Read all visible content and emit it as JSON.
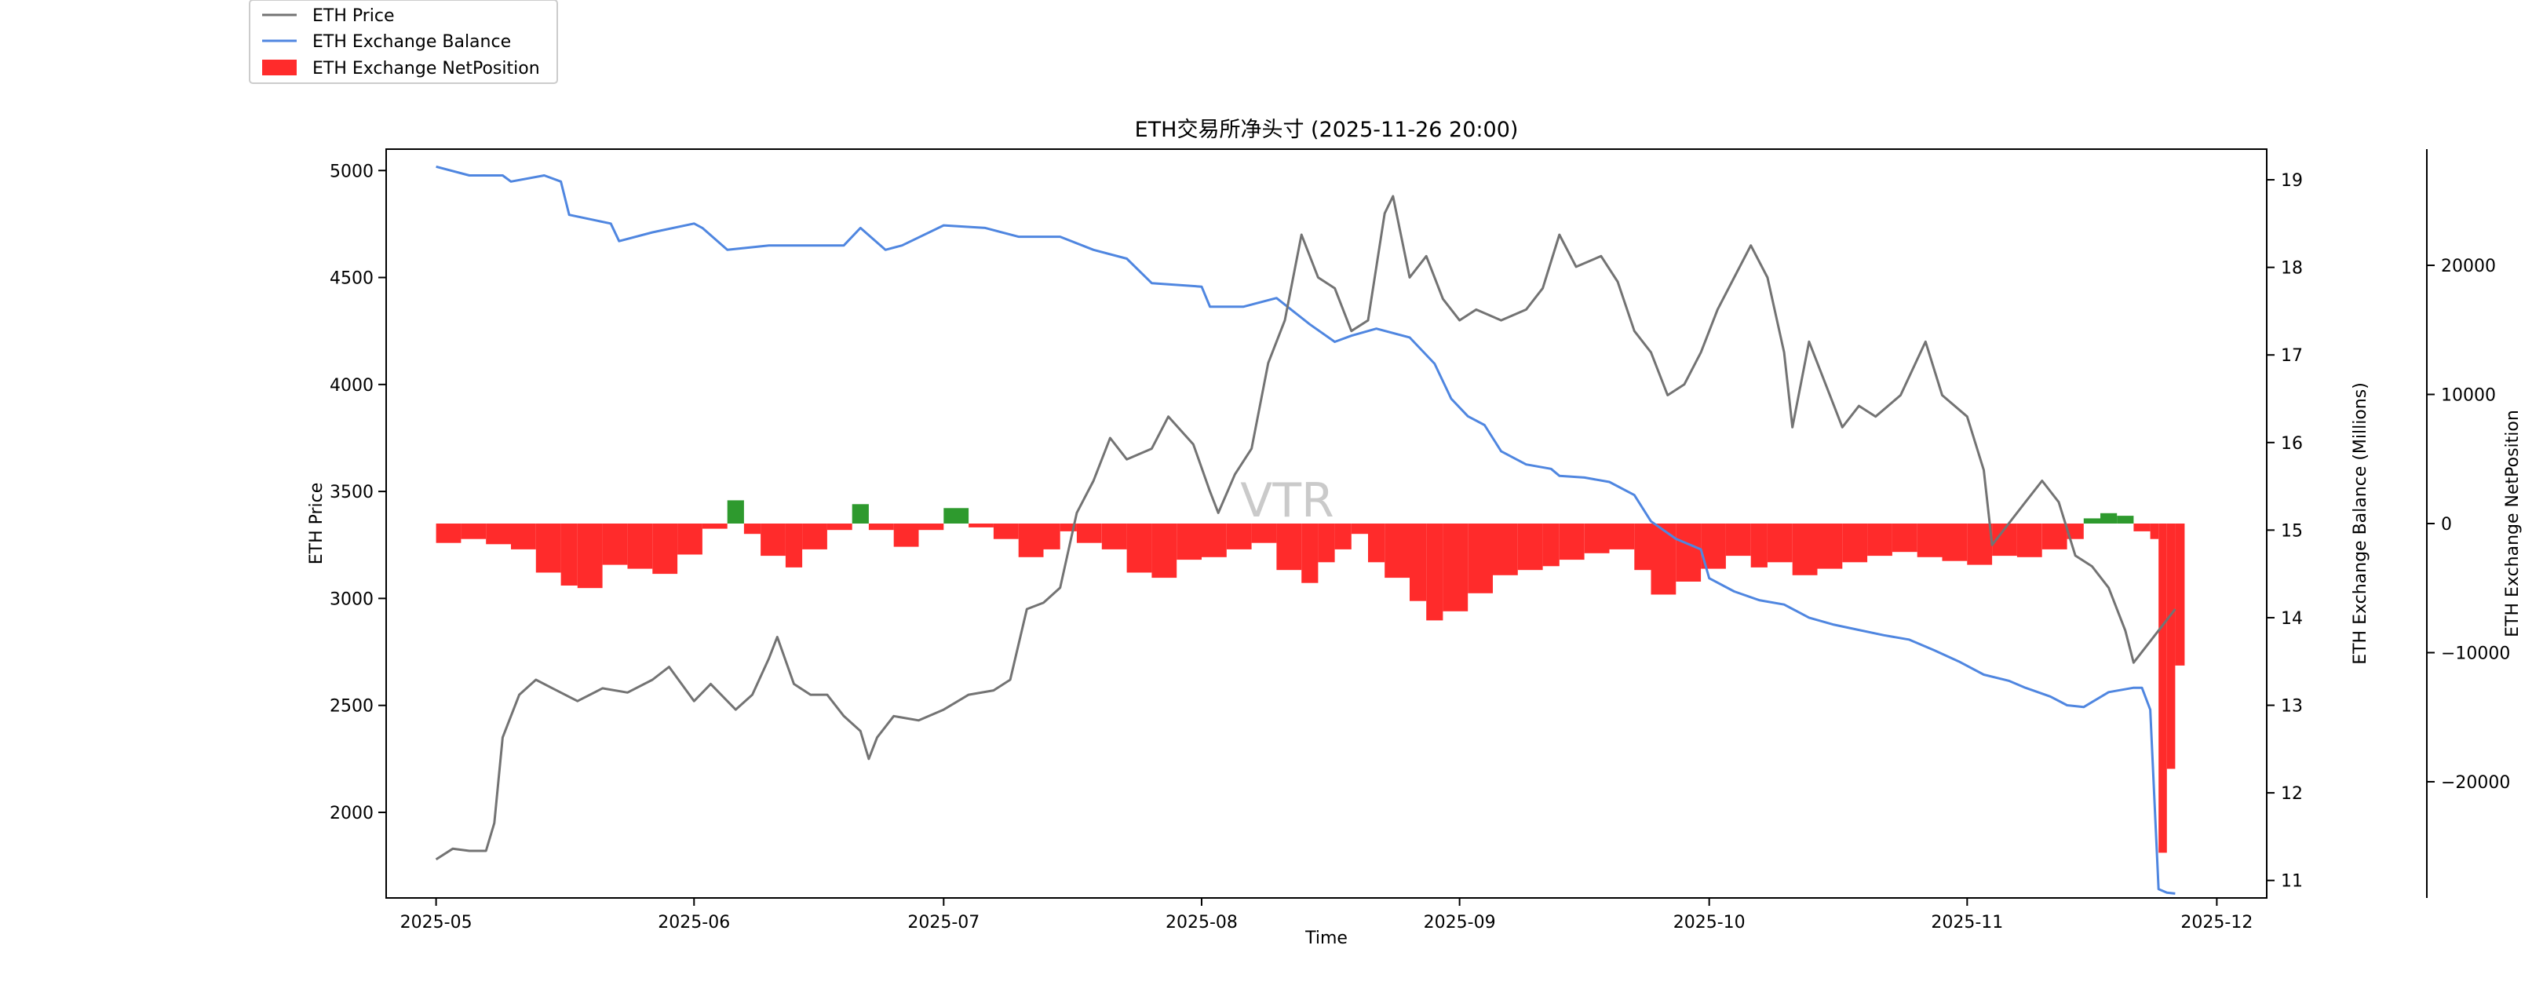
{
  "chart_data": {
    "type": "line",
    "title": "ETH交易所净头寸 (2025-11-26 20:00)",
    "xlabel": "Time",
    "ylabel_left": "ETH Price",
    "ylabel_right": "ETH Exchange Balance (Millions)",
    "ylabel_right2": "ETH Exchange NetPosition",
    "watermark": "VTR",
    "legend_position": "upper-left (outside, above plot)",
    "grid": false,
    "x_ticks": [
      "2025-05",
      "2025-06",
      "2025-07",
      "2025-08",
      "2025-09",
      "2025-10",
      "2025-11",
      "2025-12"
    ],
    "x_range": [
      "2025-04-25",
      "2025-12-07"
    ],
    "y_left_ticks": [
      "2000",
      "2500",
      "3000",
      "3500",
      "4000",
      "4500",
      "5000"
    ],
    "y_left_range": [
      1600,
      5100
    ],
    "y_right_ticks": [
      "11",
      "12",
      "13",
      "14",
      "15",
      "16",
      "17",
      "18",
      "19"
    ],
    "y_right_range": [
      10.8,
      19.35
    ],
    "y_right2_ticks": [
      "−20000",
      "−10000",
      "0",
      "10000",
      "20000"
    ],
    "y_right2_range": [
      -29000,
      29000
    ],
    "series": [
      {
        "name": "ETH Price",
        "color": "#737373",
        "axis": "left",
        "style": "line",
        "points": [
          [
            "2025-05-01",
            1780
          ],
          [
            "2025-05-03",
            1830
          ],
          [
            "2025-05-05",
            1820
          ],
          [
            "2025-05-07",
            1820
          ],
          [
            "2025-05-08",
            1950
          ],
          [
            "2025-05-09",
            2350
          ],
          [
            "2025-05-10",
            2450
          ],
          [
            "2025-05-11",
            2550
          ],
          [
            "2025-05-13",
            2620
          ],
          [
            "2025-05-15",
            2580
          ],
          [
            "2025-05-18",
            2520
          ],
          [
            "2025-05-21",
            2580
          ],
          [
            "2025-05-24",
            2560
          ],
          [
            "2025-05-27",
            2620
          ],
          [
            "2025-05-29",
            2680
          ],
          [
            "2025-06-01",
            2520
          ],
          [
            "2025-06-03",
            2600
          ],
          [
            "2025-06-06",
            2480
          ],
          [
            "2025-06-08",
            2550
          ],
          [
            "2025-06-10",
            2720
          ],
          [
            "2025-06-11",
            2820
          ],
          [
            "2025-06-13",
            2600
          ],
          [
            "2025-06-15",
            2550
          ],
          [
            "2025-06-17",
            2550
          ],
          [
            "2025-06-19",
            2450
          ],
          [
            "2025-06-21",
            2380
          ],
          [
            "2025-06-22",
            2250
          ],
          [
            "2025-06-23",
            2350
          ],
          [
            "2025-06-25",
            2450
          ],
          [
            "2025-06-28",
            2430
          ],
          [
            "2025-07-01",
            2480
          ],
          [
            "2025-07-04",
            2550
          ],
          [
            "2025-07-07",
            2570
          ],
          [
            "2025-07-09",
            2620
          ],
          [
            "2025-07-11",
            2950
          ],
          [
            "2025-07-13",
            2980
          ],
          [
            "2025-07-15",
            3050
          ],
          [
            "2025-07-17",
            3400
          ],
          [
            "2025-07-19",
            3550
          ],
          [
            "2025-07-21",
            3750
          ],
          [
            "2025-07-23",
            3650
          ],
          [
            "2025-07-26",
            3700
          ],
          [
            "2025-07-28",
            3850
          ],
          [
            "2025-07-31",
            3720
          ],
          [
            "2025-08-02",
            3500
          ],
          [
            "2025-08-03",
            3400
          ],
          [
            "2025-08-05",
            3580
          ],
          [
            "2025-08-07",
            3700
          ],
          [
            "2025-08-09",
            4100
          ],
          [
            "2025-08-11",
            4300
          ],
          [
            "2025-08-13",
            4700
          ],
          [
            "2025-08-15",
            4500
          ],
          [
            "2025-08-17",
            4450
          ],
          [
            "2025-08-19",
            4250
          ],
          [
            "2025-08-21",
            4300
          ],
          [
            "2025-08-23",
            4800
          ],
          [
            "2025-08-24",
            4880
          ],
          [
            "2025-08-26",
            4500
          ],
          [
            "2025-08-28",
            4600
          ],
          [
            "2025-08-30",
            4400
          ],
          [
            "2025-09-01",
            4300
          ],
          [
            "2025-09-03",
            4350
          ],
          [
            "2025-09-06",
            4300
          ],
          [
            "2025-09-09",
            4350
          ],
          [
            "2025-09-11",
            4450
          ],
          [
            "2025-09-13",
            4700
          ],
          [
            "2025-09-15",
            4550
          ],
          [
            "2025-09-18",
            4600
          ],
          [
            "2025-09-20",
            4480
          ],
          [
            "2025-09-22",
            4250
          ],
          [
            "2025-09-24",
            4150
          ],
          [
            "2025-09-26",
            3950
          ],
          [
            "2025-09-28",
            4000
          ],
          [
            "2025-09-30",
            4150
          ],
          [
            "2025-10-02",
            4350
          ],
          [
            "2025-10-04",
            4500
          ],
          [
            "2025-10-06",
            4650
          ],
          [
            "2025-10-08",
            4500
          ],
          [
            "2025-10-10",
            4150
          ],
          [
            "2025-10-11",
            3800
          ],
          [
            "2025-10-13",
            4200
          ],
          [
            "2025-10-15",
            4000
          ],
          [
            "2025-10-17",
            3800
          ],
          [
            "2025-10-19",
            3900
          ],
          [
            "2025-10-21",
            3850
          ],
          [
            "2025-10-24",
            3950
          ],
          [
            "2025-10-27",
            4200
          ],
          [
            "2025-10-29",
            3950
          ],
          [
            "2025-11-01",
            3850
          ],
          [
            "2025-11-03",
            3600
          ],
          [
            "2025-11-04",
            3250
          ],
          [
            "2025-11-06",
            3350
          ],
          [
            "2025-11-08",
            3450
          ],
          [
            "2025-11-10",
            3550
          ],
          [
            "2025-11-12",
            3450
          ],
          [
            "2025-11-14",
            3200
          ],
          [
            "2025-11-16",
            3150
          ],
          [
            "2025-11-18",
            3050
          ],
          [
            "2025-11-20",
            2850
          ],
          [
            "2025-11-21",
            2700
          ],
          [
            "2025-11-23",
            2800
          ],
          [
            "2025-11-25",
            2900
          ],
          [
            "2025-11-26",
            2950
          ]
        ]
      },
      {
        "name": "ETH Exchange Balance",
        "color": "#4f86e0",
        "axis": "right",
        "style": "line",
        "points": [
          [
            "2025-05-01",
            19.15
          ],
          [
            "2025-05-05",
            19.05
          ],
          [
            "2025-05-09",
            19.05
          ],
          [
            "2025-05-10",
            18.98
          ],
          [
            "2025-05-14",
            19.05
          ],
          [
            "2025-05-16",
            18.98
          ],
          [
            "2025-05-17",
            18.6
          ],
          [
            "2025-05-22",
            18.5
          ],
          [
            "2025-05-23",
            18.3
          ],
          [
            "2025-05-27",
            18.4
          ],
          [
            "2025-06-01",
            18.5
          ],
          [
            "2025-06-02",
            18.45
          ],
          [
            "2025-06-05",
            18.2
          ],
          [
            "2025-06-10",
            18.25
          ],
          [
            "2025-06-15",
            18.25
          ],
          [
            "2025-06-19",
            18.25
          ],
          [
            "2025-06-21",
            18.45
          ],
          [
            "2025-06-24",
            18.2
          ],
          [
            "2025-06-26",
            18.25
          ],
          [
            "2025-07-01",
            18.48
          ],
          [
            "2025-07-06",
            18.45
          ],
          [
            "2025-07-10",
            18.35
          ],
          [
            "2025-07-15",
            18.35
          ],
          [
            "2025-07-19",
            18.2
          ],
          [
            "2025-07-23",
            18.1
          ],
          [
            "2025-07-26",
            17.82
          ],
          [
            "2025-08-01",
            17.78
          ],
          [
            "2025-08-02",
            17.55
          ],
          [
            "2025-08-06",
            17.55
          ],
          [
            "2025-08-10",
            17.65
          ],
          [
            "2025-08-14",
            17.35
          ],
          [
            "2025-08-17",
            17.15
          ],
          [
            "2025-08-19",
            17.22
          ],
          [
            "2025-08-22",
            17.3
          ],
          [
            "2025-08-26",
            17.2
          ],
          [
            "2025-08-29",
            16.9
          ],
          [
            "2025-08-31",
            16.5
          ],
          [
            "2025-09-02",
            16.3
          ],
          [
            "2025-09-04",
            16.2
          ],
          [
            "2025-09-06",
            15.9
          ],
          [
            "2025-09-09",
            15.75
          ],
          [
            "2025-09-12",
            15.7
          ],
          [
            "2025-09-13",
            15.62
          ],
          [
            "2025-09-16",
            15.6
          ],
          [
            "2025-09-19",
            15.55
          ],
          [
            "2025-09-22",
            15.4
          ],
          [
            "2025-09-24",
            15.1
          ],
          [
            "2025-09-27",
            14.9
          ],
          [
            "2025-09-30",
            14.78
          ],
          [
            "2025-10-01",
            14.45
          ],
          [
            "2025-10-04",
            14.3
          ],
          [
            "2025-10-07",
            14.2
          ],
          [
            "2025-10-10",
            14.15
          ],
          [
            "2025-10-13",
            14.0
          ],
          [
            "2025-10-16",
            13.92
          ],
          [
            "2025-10-19",
            13.86
          ],
          [
            "2025-10-22",
            13.8
          ],
          [
            "2025-10-25",
            13.75
          ],
          [
            "2025-10-28",
            13.63
          ],
          [
            "2025-10-31",
            13.5
          ],
          [
            "2025-11-03",
            13.35
          ],
          [
            "2025-11-06",
            13.28
          ],
          [
            "2025-11-08",
            13.2
          ],
          [
            "2025-11-11",
            13.1
          ],
          [
            "2025-11-13",
            13.0
          ],
          [
            "2025-11-15",
            12.98
          ],
          [
            "2025-11-18",
            13.15
          ],
          [
            "2025-11-21",
            13.2
          ],
          [
            "2025-11-22",
            13.2
          ],
          [
            "2025-11-23",
            12.95
          ],
          [
            "2025-11-24",
            10.9
          ],
          [
            "2025-11-25",
            10.86
          ],
          [
            "2025-11-26",
            10.85
          ]
        ]
      },
      {
        "name": "ETH Exchange NetPosition",
        "color": "#ff2b2b",
        "negative_color": "#ff2b2b",
        "positive_color": "#2e9a2e",
        "axis": "right2",
        "style": "bars",
        "points": [
          [
            "2025-05-01",
            -1500
          ],
          [
            "2025-05-04",
            -1200
          ],
          [
            "2025-05-07",
            -1600
          ],
          [
            "2025-05-10",
            -2000
          ],
          [
            "2025-05-13",
            -3800
          ],
          [
            "2025-05-16",
            -4800
          ],
          [
            "2025-05-18",
            -5000
          ],
          [
            "2025-05-21",
            -3200
          ],
          [
            "2025-05-24",
            -3500
          ],
          [
            "2025-05-27",
            -3900
          ],
          [
            "2025-05-30",
            -2400
          ],
          [
            "2025-06-02",
            -400
          ],
          [
            "2025-06-05",
            1800
          ],
          [
            "2025-06-07",
            -800
          ],
          [
            "2025-06-09",
            -2500
          ],
          [
            "2025-06-12",
            -3400
          ],
          [
            "2025-06-14",
            -2000
          ],
          [
            "2025-06-17",
            -500
          ],
          [
            "2025-06-20",
            1500
          ],
          [
            "2025-06-22",
            -500
          ],
          [
            "2025-06-25",
            -1800
          ],
          [
            "2025-06-28",
            -500
          ],
          [
            "2025-07-01",
            1200
          ],
          [
            "2025-07-04",
            -300
          ],
          [
            "2025-07-07",
            -1200
          ],
          [
            "2025-07-10",
            -2600
          ],
          [
            "2025-07-13",
            -2000
          ],
          [
            "2025-07-15",
            -600
          ],
          [
            "2025-07-17",
            -1500
          ],
          [
            "2025-07-20",
            -2000
          ],
          [
            "2025-07-23",
            -3800
          ],
          [
            "2025-07-26",
            -4200
          ],
          [
            "2025-07-29",
            -2800
          ],
          [
            "2025-08-01",
            -2600
          ],
          [
            "2025-08-04",
            -2000
          ],
          [
            "2025-08-07",
            -1500
          ],
          [
            "2025-08-10",
            -3600
          ],
          [
            "2025-08-13",
            -4600
          ],
          [
            "2025-08-15",
            -3000
          ],
          [
            "2025-08-17",
            -2000
          ],
          [
            "2025-08-19",
            -800
          ],
          [
            "2025-08-21",
            -3000
          ],
          [
            "2025-08-23",
            -4200
          ],
          [
            "2025-08-26",
            -6000
          ],
          [
            "2025-08-28",
            -7500
          ],
          [
            "2025-08-30",
            -6800
          ],
          [
            "2025-09-02",
            -5400
          ],
          [
            "2025-09-05",
            -4000
          ],
          [
            "2025-09-08",
            -3600
          ],
          [
            "2025-09-11",
            -3300
          ],
          [
            "2025-09-13",
            -2800
          ],
          [
            "2025-09-16",
            -2300
          ],
          [
            "2025-09-19",
            -2000
          ],
          [
            "2025-09-22",
            -3600
          ],
          [
            "2025-09-24",
            -5500
          ],
          [
            "2025-09-27",
            -4500
          ],
          [
            "2025-09-30",
            -3500
          ],
          [
            "2025-10-03",
            -2500
          ],
          [
            "2025-10-06",
            -3400
          ],
          [
            "2025-10-08",
            -3000
          ],
          [
            "2025-10-11",
            -4000
          ],
          [
            "2025-10-14",
            -3500
          ],
          [
            "2025-10-17",
            -3000
          ],
          [
            "2025-10-20",
            -2500
          ],
          [
            "2025-10-23",
            -2200
          ],
          [
            "2025-10-26",
            -2600
          ],
          [
            "2025-10-29",
            -2900
          ],
          [
            "2025-11-01",
            -3200
          ],
          [
            "2025-11-04",
            -2500
          ],
          [
            "2025-11-07",
            -2600
          ],
          [
            "2025-11-10",
            -2000
          ],
          [
            "2025-11-13",
            -1200
          ],
          [
            "2025-11-15",
            400
          ],
          [
            "2025-11-17",
            800
          ],
          [
            "2025-11-19",
            600
          ],
          [
            "2025-11-21",
            -600
          ],
          [
            "2025-11-23",
            -1200
          ],
          [
            "2025-11-24",
            -25500
          ],
          [
            "2025-11-25",
            -19000
          ],
          [
            "2025-11-26",
            -11000
          ]
        ]
      }
    ]
  }
}
